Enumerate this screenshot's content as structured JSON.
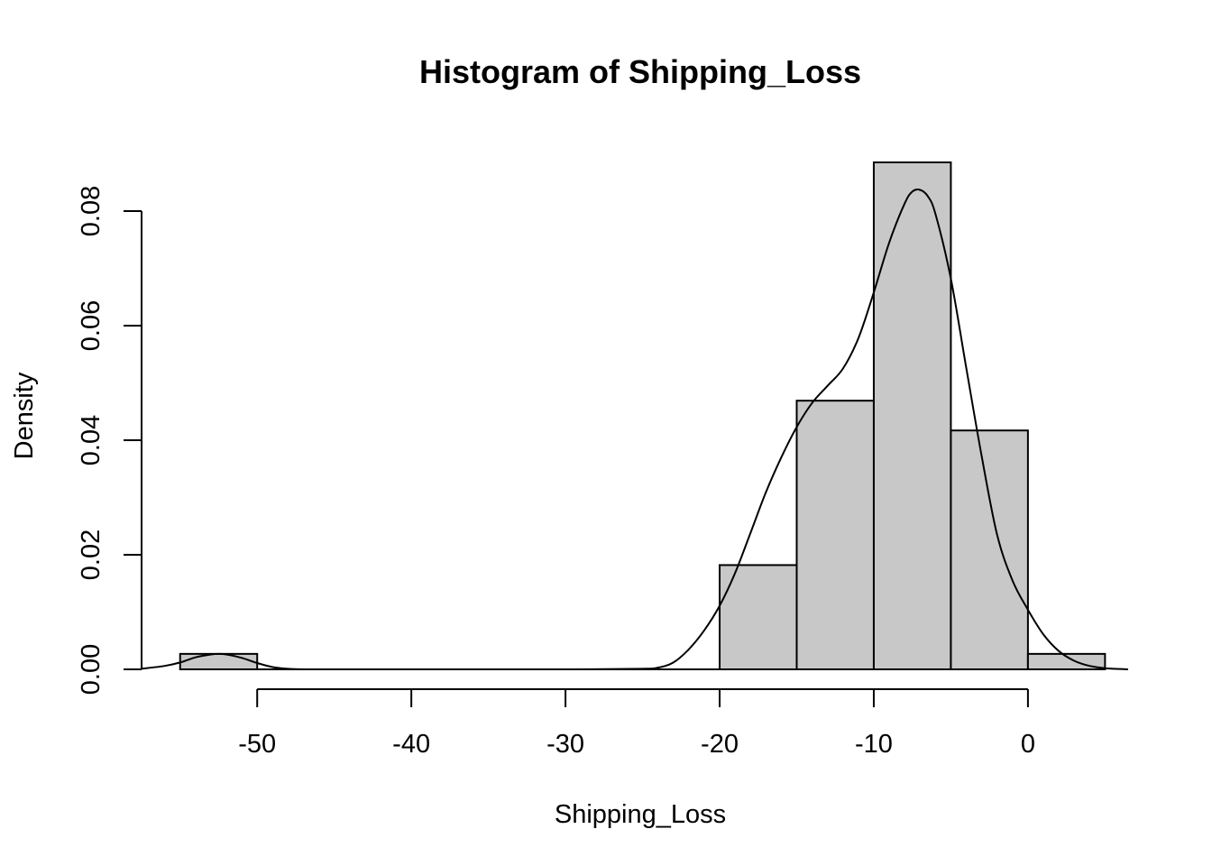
{
  "chart_data": {
    "type": "bar",
    "title": "Histogram of Shipping_Loss",
    "xlabel": "Shipping_Loss",
    "ylabel": "Density",
    "bins": [
      {
        "start": -55,
        "end": -50,
        "density": 0.0027
      },
      {
        "start": -50,
        "end": -45,
        "density": 0
      },
      {
        "start": -45,
        "end": -40,
        "density": 0
      },
      {
        "start": -40,
        "end": -35,
        "density": 0
      },
      {
        "start": -35,
        "end": -30,
        "density": 0
      },
      {
        "start": -30,
        "end": -25,
        "density": 0
      },
      {
        "start": -25,
        "end": -20,
        "density": 0
      },
      {
        "start": -20,
        "end": -15,
        "density": 0.0182
      },
      {
        "start": -15,
        "end": -10,
        "density": 0.0469
      },
      {
        "start": -10,
        "end": -5,
        "density": 0.0885
      },
      {
        "start": -5,
        "end": 0,
        "density": 0.0417
      },
      {
        "start": 0,
        "end": 5,
        "density": 0.0027
      }
    ],
    "density_curve": {
      "x": [
        -57.5,
        -56,
        -55,
        -54,
        -53,
        -52.5,
        -52,
        -51,
        -50,
        -49,
        -48,
        -47,
        -45,
        -40,
        -35,
        -30,
        -25,
        -24,
        -23,
        -22,
        -21,
        -20,
        -19,
        -18,
        -17,
        -16,
        -15,
        -14,
        -13,
        -12,
        -11,
        -10,
        -9,
        -8,
        -7.5,
        -7,
        -6.5,
        -6,
        -5,
        -4,
        -3,
        -2,
        -1,
        0,
        1,
        2,
        3,
        4,
        5,
        6,
        6.5
      ],
      "y": [
        0.0001,
        0.0006,
        0.0012,
        0.0021,
        0.0026,
        0.0027,
        0.0026,
        0.002,
        0.0011,
        0.0004,
        0.0001,
        0,
        0,
        0,
        0,
        0,
        0.0001,
        0.0003,
        0.0012,
        0.0035,
        0.0068,
        0.0111,
        0.0168,
        0.0238,
        0.0309,
        0.037,
        0.0423,
        0.0465,
        0.0495,
        0.0525,
        0.0578,
        0.0658,
        0.0745,
        0.0813,
        0.0834,
        0.0837,
        0.0826,
        0.0795,
        0.0682,
        0.0526,
        0.0372,
        0.0235,
        0.0155,
        0.0104,
        0.0061,
        0.0032,
        0.0015,
        0.0006,
        0.0002,
        5e-05,
        0
      ]
    },
    "x_ticks": [
      -50,
      -40,
      -30,
      -20,
      -10,
      0
    ],
    "x_tick_labels": [
      "-50",
      "-40",
      "-30",
      "-20",
      "-10",
      "0"
    ],
    "y_ticks": [
      0,
      0.02,
      0.04,
      0.06,
      0.08
    ],
    "y_tick_labels": [
      "0.00",
      "0.02",
      "0.04",
      "0.06",
      "0.08"
    ],
    "xlim": [
      -57.5,
      6.5
    ],
    "ylim": [
      0,
      0.0885
    ],
    "grid": false,
    "colors": {
      "bar_fill": "#c8c8c8",
      "line": "#000000"
    }
  }
}
